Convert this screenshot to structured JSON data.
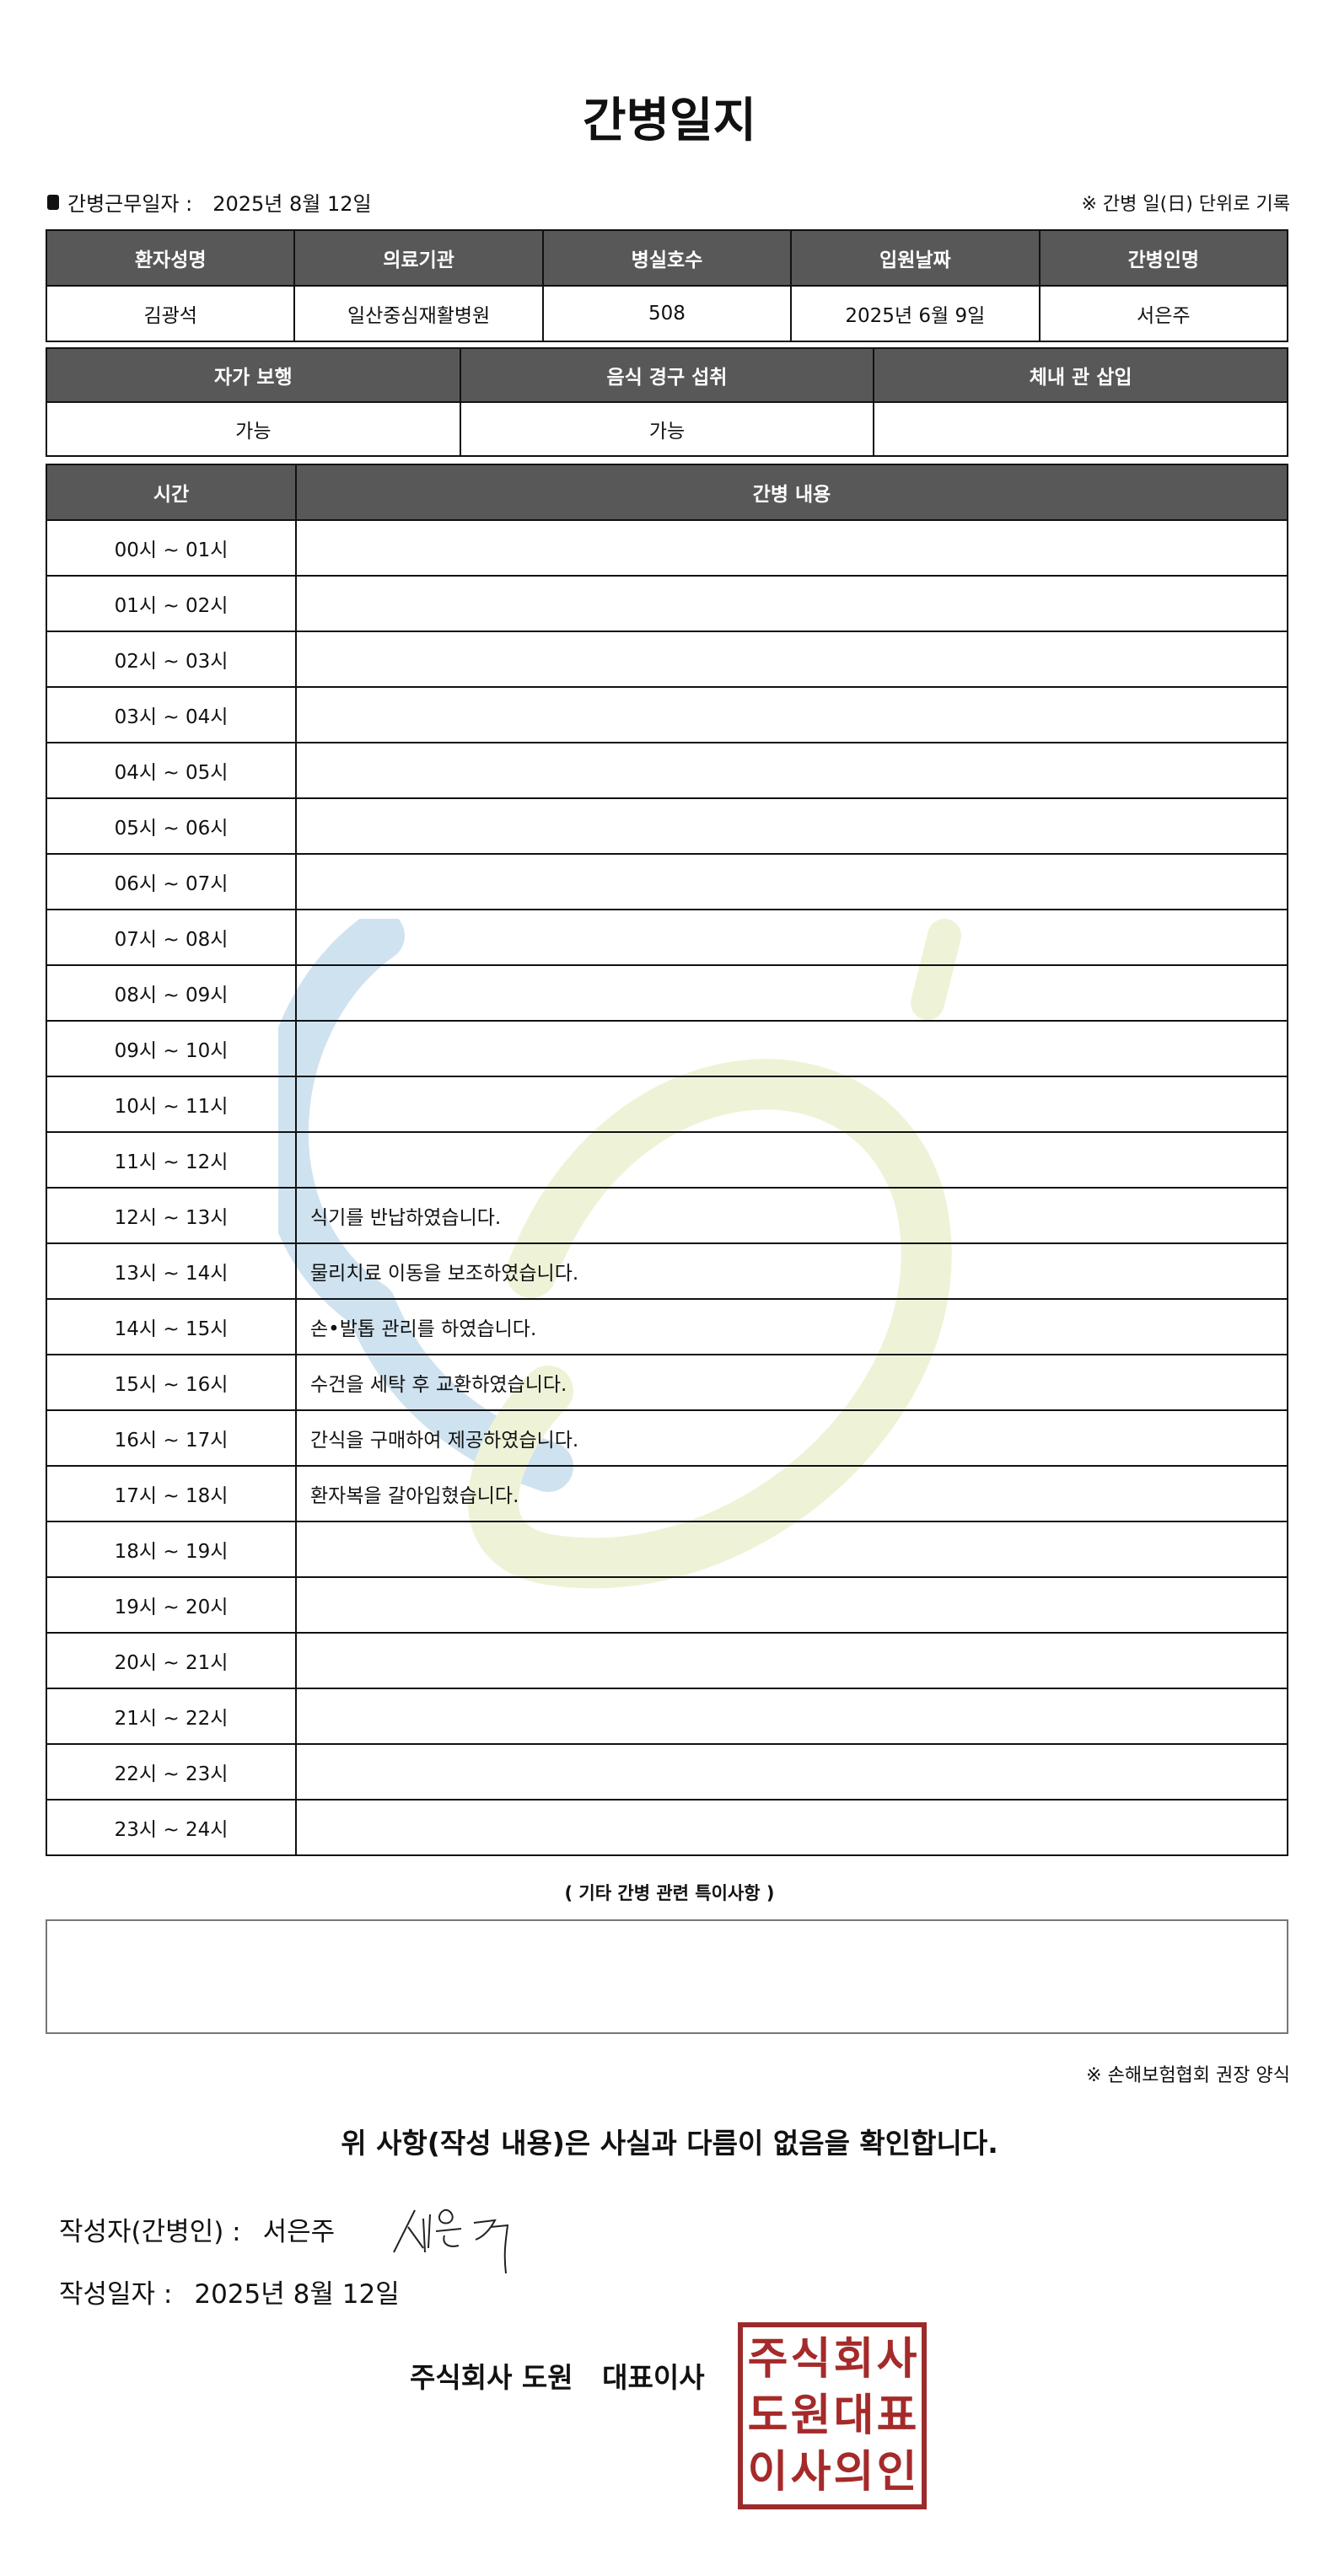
{
  "title": "간병일지",
  "work_date_label": "간병근무일자 :",
  "work_date": "2025년 8월 12일",
  "unit_note": "※ 간병 일(日) 단위로 기록",
  "info": {
    "headers": [
      "환자성명",
      "의료기관",
      "병실호수",
      "입원날짜",
      "간병인명"
    ],
    "values": [
      "김광석",
      "일산중심재활병원",
      "508",
      "2025년 6월 9일",
      "서은주"
    ]
  },
  "status": {
    "headers": [
      "자가 보행",
      "음식 경구 섭취",
      "체내 관 삽입"
    ],
    "values": [
      "가능",
      "가능",
      ""
    ]
  },
  "log": {
    "headers": [
      "시간",
      "간병 내용"
    ],
    "rows": [
      {
        "time": "00시 ~ 01시",
        "content": ""
      },
      {
        "time": "01시 ~ 02시",
        "content": ""
      },
      {
        "time": "02시 ~ 03시",
        "content": ""
      },
      {
        "time": "03시 ~ 04시",
        "content": ""
      },
      {
        "time": "04시 ~ 05시",
        "content": ""
      },
      {
        "time": "05시 ~ 06시",
        "content": ""
      },
      {
        "time": "06시 ~ 07시",
        "content": ""
      },
      {
        "time": "07시 ~ 08시",
        "content": ""
      },
      {
        "time": "08시 ~ 09시",
        "content": ""
      },
      {
        "time": "09시 ~ 10시",
        "content": ""
      },
      {
        "time": "10시 ~ 11시",
        "content": ""
      },
      {
        "time": "11시 ~ 12시",
        "content": ""
      },
      {
        "time": "12시 ~ 13시",
        "content": "식기를 반납하였습니다."
      },
      {
        "time": "13시 ~ 14시",
        "content": "물리치료 이동을 보조하였습니다."
      },
      {
        "time": "14시 ~ 15시",
        "content": "손•발톱 관리를 하였습니다."
      },
      {
        "time": "15시 ~ 16시",
        "content": "수건을 세탁 후 교환하였습니다."
      },
      {
        "time": "16시 ~ 17시",
        "content": "간식을 구매하여 제공하였습니다."
      },
      {
        "time": "17시 ~ 18시",
        "content": "환자복을 갈아입혔습니다."
      },
      {
        "time": "18시 ~ 19시",
        "content": ""
      },
      {
        "time": "19시 ~ 20시",
        "content": ""
      },
      {
        "time": "20시 ~ 21시",
        "content": ""
      },
      {
        "time": "21시 ~ 22시",
        "content": ""
      },
      {
        "time": "22시 ~ 23시",
        "content": ""
      },
      {
        "time": "23시 ~ 24시",
        "content": ""
      }
    ]
  },
  "notes_label": "( 기타 간병 관련 특이사항 )",
  "notes": "",
  "assoc_note": "※ 손해보험협회 권장 양식",
  "confirm": "위 사항(작성 내용)은 사실과 다름이 없음을 확인합니다.",
  "writer_label": "작성자(간병인) :",
  "writer": "서은주",
  "date_label": "작성일자 :",
  "date": "2025년 8월 12일",
  "company": "주식회사 도원   대표이사",
  "seal_text": [
    "주식회사",
    "도원대표",
    "이사의인"
  ],
  "colors": {
    "header_bg": "#585858",
    "seal": "#a52a2a",
    "watermark_blue": "#cfe2f0",
    "watermark_green": "#eef3d8"
  }
}
